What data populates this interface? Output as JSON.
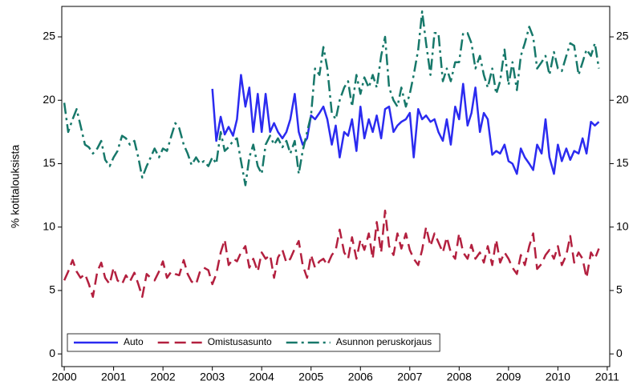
{
  "chart_data": {
    "type": "line",
    "ylabel": "% kotitalouksista",
    "xlim": [
      1999.95,
      2011.05
    ],
    "xticks": [
      2000,
      2001,
      2002,
      2003,
      2004,
      2005,
      2006,
      2007,
      2008,
      2009,
      2010,
      2011
    ],
    "ylim": [
      -1,
      27.4
    ],
    "yticks": [
      0,
      5,
      10,
      15,
      20,
      25
    ],
    "right_axis": true,
    "legend": "bottom-left",
    "x": [
      2000,
      2000.08,
      2000.17,
      2000.25,
      2000.33,
      2000.42,
      2000.5,
      2000.58,
      2000.67,
      2000.75,
      2000.83,
      2000.92,
      2001,
      2001.08,
      2001.17,
      2001.25,
      2001.33,
      2001.42,
      2001.5,
      2001.58,
      2001.67,
      2001.75,
      2001.83,
      2001.92,
      2002,
      2002.08,
      2002.17,
      2002.25,
      2002.33,
      2002.42,
      2002.5,
      2002.58,
      2002.67,
      2002.75,
      2002.83,
      2002.92,
      2003,
      2003.08,
      2003.17,
      2003.25,
      2003.33,
      2003.42,
      2003.5,
      2003.58,
      2003.67,
      2003.75,
      2003.83,
      2003.92,
      2004,
      2004.08,
      2004.17,
      2004.25,
      2004.33,
      2004.42,
      2004.5,
      2004.58,
      2004.67,
      2004.75,
      2004.83,
      2004.92,
      2005,
      2005.08,
      2005.17,
      2005.25,
      2005.33,
      2005.42,
      2005.5,
      2005.58,
      2005.67,
      2005.75,
      2005.83,
      2005.92,
      2006,
      2006.08,
      2006.17,
      2006.25,
      2006.33,
      2006.42,
      2006.5,
      2006.58,
      2006.67,
      2006.75,
      2006.83,
      2006.92,
      2007,
      2007.08,
      2007.17,
      2007.25,
      2007.33,
      2007.42,
      2007.5,
      2007.58,
      2007.67,
      2007.75,
      2007.83,
      2007.92,
      2008,
      2008.08,
      2008.17,
      2008.25,
      2008.33,
      2008.42,
      2008.5,
      2008.58,
      2008.67,
      2008.75,
      2008.83,
      2008.92,
      2009,
      2009.08,
      2009.17,
      2009.25,
      2009.33,
      2009.42,
      2009.5,
      2009.58,
      2009.67,
      2009.75,
      2009.83,
      2009.92,
      2010,
      2010.08,
      2010.17,
      2010.25,
      2010.33,
      2010.42,
      2010.5,
      2010.58,
      2010.67,
      2010.75,
      2010.83
    ],
    "series": [
      {
        "name": "Auto",
        "color": "#2b2bf0",
        "style": "solid",
        "values": [
          null,
          null,
          null,
          null,
          null,
          null,
          null,
          null,
          null,
          null,
          null,
          null,
          null,
          null,
          null,
          null,
          null,
          null,
          null,
          null,
          null,
          null,
          null,
          null,
          null,
          null,
          null,
          null,
          null,
          null,
          null,
          null,
          null,
          null,
          null,
          null,
          20.9,
          16.8,
          18.7,
          17.3,
          17.9,
          17.2,
          18.5,
          22,
          19.5,
          21,
          17.5,
          20.5,
          17.5,
          20.5,
          17.5,
          18.2,
          17.5,
          17,
          17.5,
          18.5,
          20.5,
          17.5,
          16.5,
          17,
          18.8,
          18.5,
          19,
          19.5,
          18.5,
          16.5,
          18,
          15.5,
          17.5,
          17.2,
          18.5,
          16,
          19.5,
          17,
          18.5,
          17.5,
          18.8,
          17,
          19.3,
          19.5,
          17.5,
          18,
          18.3,
          18.5,
          19,
          15.5,
          19.3,
          18.5,
          18.8,
          18.3,
          18.5,
          17.5,
          16.8,
          18.5,
          16.5,
          19.5,
          18.5,
          21.3,
          18,
          19,
          21,
          17.5,
          19,
          18.5,
          15.7,
          16,
          15.8,
          16.5,
          15.2,
          15,
          14.2,
          16.2,
          15.5,
          15,
          14.5,
          16.5,
          15.8,
          18.5,
          15.5,
          14.2,
          16.5,
          15.2,
          16.2,
          15.3,
          16,
          15.8,
          17,
          15.8,
          18.3,
          18,
          18.3
        ]
      },
      {
        "name": "Omistusasunto",
        "color": "#b3203f",
        "style": "dash",
        "values": [
          5.8,
          6.5,
          7.4,
          6.5,
          6,
          6.3,
          5.5,
          4.5,
          6.5,
          7.2,
          6,
          5.5,
          6.8,
          5.8,
          5.5,
          6.2,
          5.7,
          6.4,
          5.5,
          4.5,
          6.3,
          6,
          5.8,
          6.5,
          7.3,
          6,
          6.5,
          6.3,
          6.2,
          7.4,
          6.3,
          5.7,
          5.5,
          6.5,
          6.8,
          6.6,
          5.5,
          6.3,
          8,
          9,
          7,
          7.5,
          7.3,
          8,
          8.5,
          6.8,
          7.5,
          6.5,
          8,
          7.5,
          7.8,
          6,
          7.6,
          8.2,
          7.2,
          7.5,
          8.3,
          8.9,
          7,
          6,
          7.8,
          6.8,
          7.3,
          7.5,
          7,
          7.8,
          8.2,
          9.8,
          8,
          7.5,
          9.2,
          7.5,
          9,
          8.2,
          9.5,
          7.5,
          10.4,
          8,
          11.3,
          8.5,
          7.8,
          9.5,
          8.3,
          9.5,
          8.2,
          7.5,
          7,
          8.2,
          10,
          8.5,
          9.5,
          8.8,
          8,
          9.2,
          8,
          7.5,
          9.5,
          8,
          7.5,
          8.6,
          7.5,
          8,
          7.2,
          8.5,
          7,
          9,
          7.2,
          8,
          7.5,
          6.8,
          6.3,
          7.8,
          7,
          8.5,
          9.5,
          6.7,
          7.1,
          7.8,
          8.2,
          7.5,
          8.5,
          7,
          7.8,
          9.3,
          7.2,
          8,
          7.5,
          6,
          8,
          7.5,
          8.3
        ]
      },
      {
        "name": "Asunnon peruskorjaus",
        "color": "#17786a",
        "style": "dashdot",
        "values": [
          19.8,
          17.5,
          18.5,
          19.3,
          18,
          16.5,
          16.3,
          15.8,
          16.2,
          16.8,
          15.3,
          14.8,
          15.5,
          16,
          17.2,
          17,
          16.5,
          16.8,
          15.5,
          13.9,
          14.8,
          15.5,
          16.2,
          15.5,
          16.2,
          16,
          17.2,
          18.2,
          17.8,
          16.5,
          15.8,
          14.9,
          15.5,
          15,
          15.2,
          14.8,
          15.5,
          15,
          17.5,
          16,
          16.3,
          16.8,
          17,
          15.2,
          13.3,
          15.5,
          16.5,
          14.8,
          14.2,
          16.5,
          17.2,
          16.5,
          17,
          16.3,
          16.8,
          15.8,
          16.8,
          14.2,
          16,
          17.5,
          18.8,
          22.5,
          22,
          24.2,
          22.5,
          19,
          18.5,
          20,
          21,
          21.5,
          19.5,
          22,
          20.5,
          21.8,
          21,
          22,
          21,
          23.5,
          25,
          21,
          20,
          19.5,
          21,
          19.5,
          20.5,
          22,
          24,
          27,
          24.5,
          22,
          25.3,
          25.3,
          21.5,
          22.5,
          21.5,
          23,
          23,
          25.3,
          25.3,
          24.5,
          22.5,
          23.5,
          22,
          21,
          22.5,
          20.5,
          21.5,
          24,
          21.2,
          23,
          20.8,
          23.5,
          24.5,
          25.8,
          25,
          22.5,
          23,
          23.5,
          22,
          23.8,
          22.5,
          22.3,
          23.5,
          24.5,
          24.3,
          22,
          23,
          24,
          23.5,
          24.5,
          22.5
        ]
      }
    ]
  }
}
